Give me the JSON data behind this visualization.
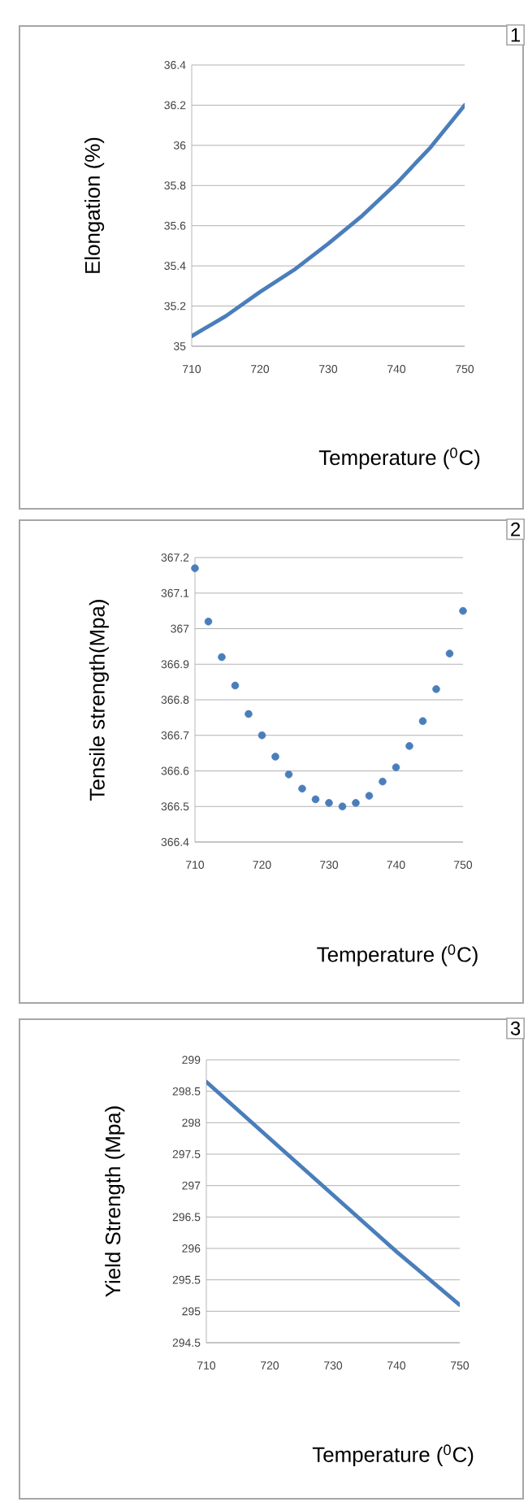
{
  "chart_data": [
    {
      "type": "line",
      "xlabel": "Temperature ($^{0}$C)",
      "ylabel": "Elongation (%)",
      "annotations": [
        "1"
      ],
      "grid": "y",
      "xlim": [
        710,
        750
      ],
      "xticks": [
        710,
        720,
        730,
        740,
        750
      ],
      "ylim": [
        35,
        36.4
      ],
      "yticks": [
        35,
        35.2,
        35.4,
        35.6,
        35.8,
        36,
        36.2,
        36.4
      ],
      "x": [
        710,
        715,
        720,
        725,
        730,
        735,
        740,
        745,
        750
      ],
      "series": [
        {
          "color": "#4a7ebb",
          "values": [
            35.05,
            35.15,
            35.27,
            35.38,
            35.51,
            35.65,
            35.81,
            35.99,
            36.2
          ]
        }
      ]
    },
    {
      "type": "scatter",
      "xlabel": "Temperature ($^{0}$C)",
      "ylabel": "Tensile strength(Mpa)",
      "annotations": [
        "2"
      ],
      "grid": "y",
      "xlim": [
        710,
        750
      ],
      "xticks": [
        710,
        720,
        730,
        740,
        750
      ],
      "ylim": [
        366.4,
        367.2
      ],
      "yticks": [
        366.4,
        366.5,
        366.6,
        366.7,
        366.8,
        366.9,
        367,
        367.1,
        367.2
      ],
      "x": [
        710,
        712,
        714,
        716,
        718,
        720,
        722,
        724,
        726,
        728,
        730,
        732,
        734,
        736,
        738,
        740,
        742,
        744,
        746,
        748,
        750
      ],
      "series": [
        {
          "color": "#4a7ebb",
          "values": [
            367.17,
            367.02,
            366.92,
            366.84,
            366.76,
            366.7,
            366.64,
            366.59,
            366.55,
            366.52,
            366.51,
            366.5,
            366.51,
            366.53,
            366.57,
            366.61,
            366.67,
            366.74,
            366.83,
            366.93,
            367.05
          ]
        }
      ]
    },
    {
      "type": "line",
      "xlabel": "Temperature ($^{0}$C)",
      "ylabel": "Yield Strength (Mpa)",
      "annotations": [
        "3"
      ],
      "grid": "y",
      "xlim": [
        710,
        750
      ],
      "xticks": [
        710,
        720,
        730,
        740,
        750
      ],
      "ylim": [
        294.5,
        299
      ],
      "yticks": [
        294.5,
        295,
        295.5,
        296,
        296.5,
        297,
        297.5,
        298,
        298.5,
        299
      ],
      "x": [
        710,
        720,
        730,
        740,
        750
      ],
      "series": [
        {
          "color": "#4a7ebb",
          "values": [
            298.65,
            297.75,
            296.85,
            295.95,
            295.1
          ]
        }
      ]
    }
  ]
}
